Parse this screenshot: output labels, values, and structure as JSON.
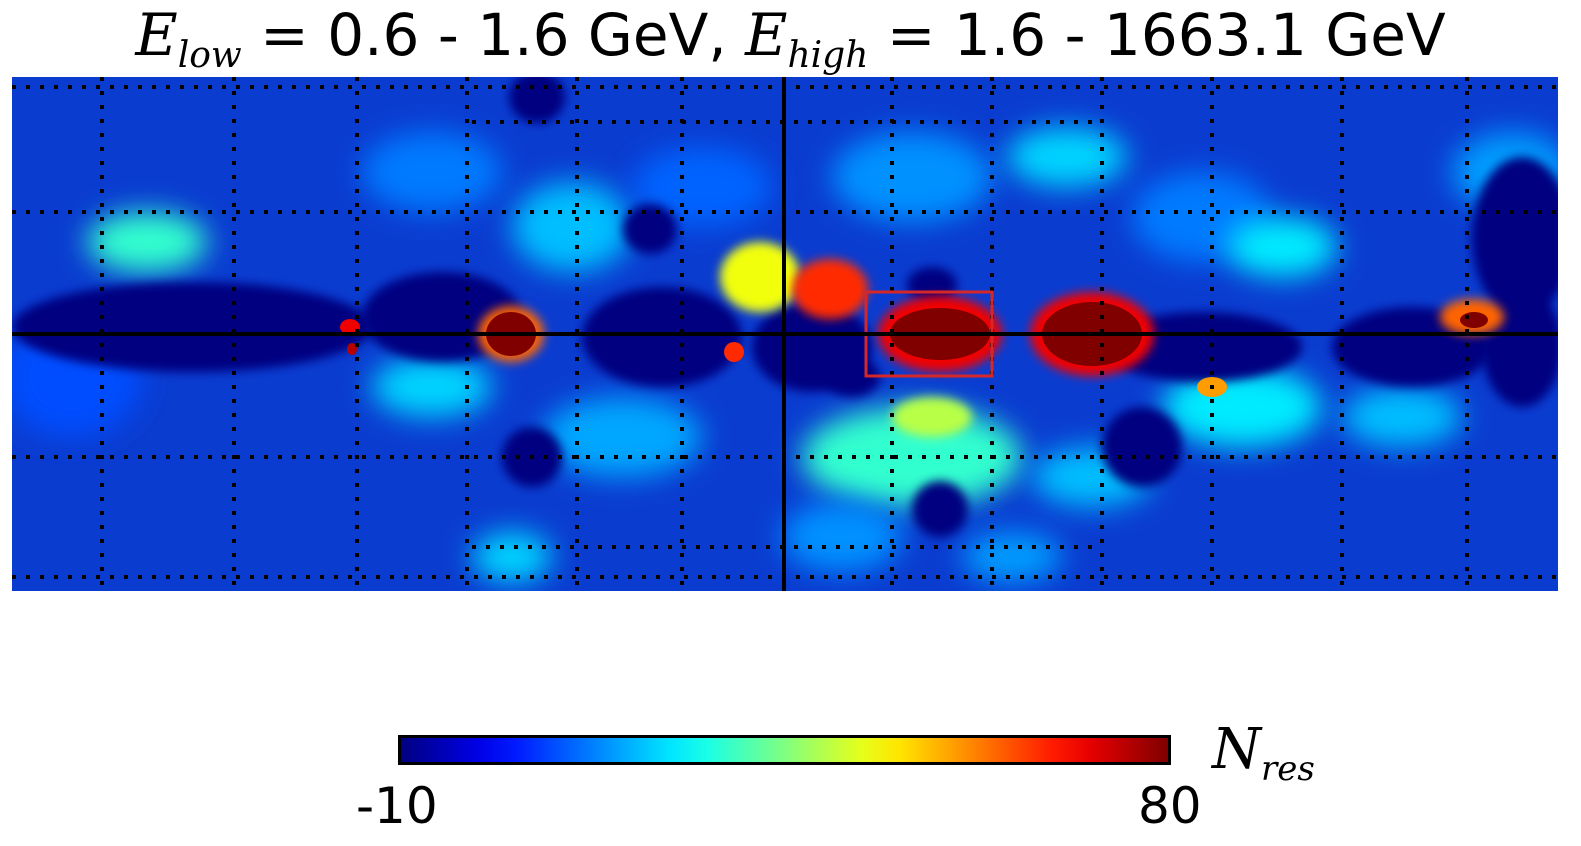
{
  "title": {
    "e_low_symbol": "E",
    "e_low_sub": "low",
    "e_low_range": "0.6 - 1.6 GeV,",
    "e_high_symbol": "E",
    "e_high_sub": "high",
    "e_high_range": "1.6 - 1663.1 GeV"
  },
  "chart_data": {
    "type": "heatmap",
    "projection": "Cartesian sky map, Galactic center at center, Galactic plane horizontal",
    "colormap": "jet",
    "colorbar": {
      "min": "-10",
      "max": "80",
      "label_symbol": "N",
      "label_sub": "res"
    },
    "value_range": [
      -10,
      80
    ],
    "grid": "dotted graticule; solid horizontal and vertical lines through map center",
    "highlight_box": {
      "color": "#d62728",
      "description": "rectangle just right of center on the plane"
    },
    "hotspots": [
      {
        "region": "center-right on plane",
        "value": 80
      },
      {
        "region": "right of center on plane",
        "value": 80
      },
      {
        "region": "left on plane",
        "value": 80
      },
      {
        "region": "far left on plane",
        "value": 60
      },
      {
        "region": "far right on plane",
        "value": 70
      },
      {
        "region": "just left of center on plane",
        "value": 60
      },
      {
        "region": "above center, left of vertical line",
        "value": 45
      },
      {
        "region": "above center, right of vertical line",
        "value": 65
      }
    ]
  }
}
